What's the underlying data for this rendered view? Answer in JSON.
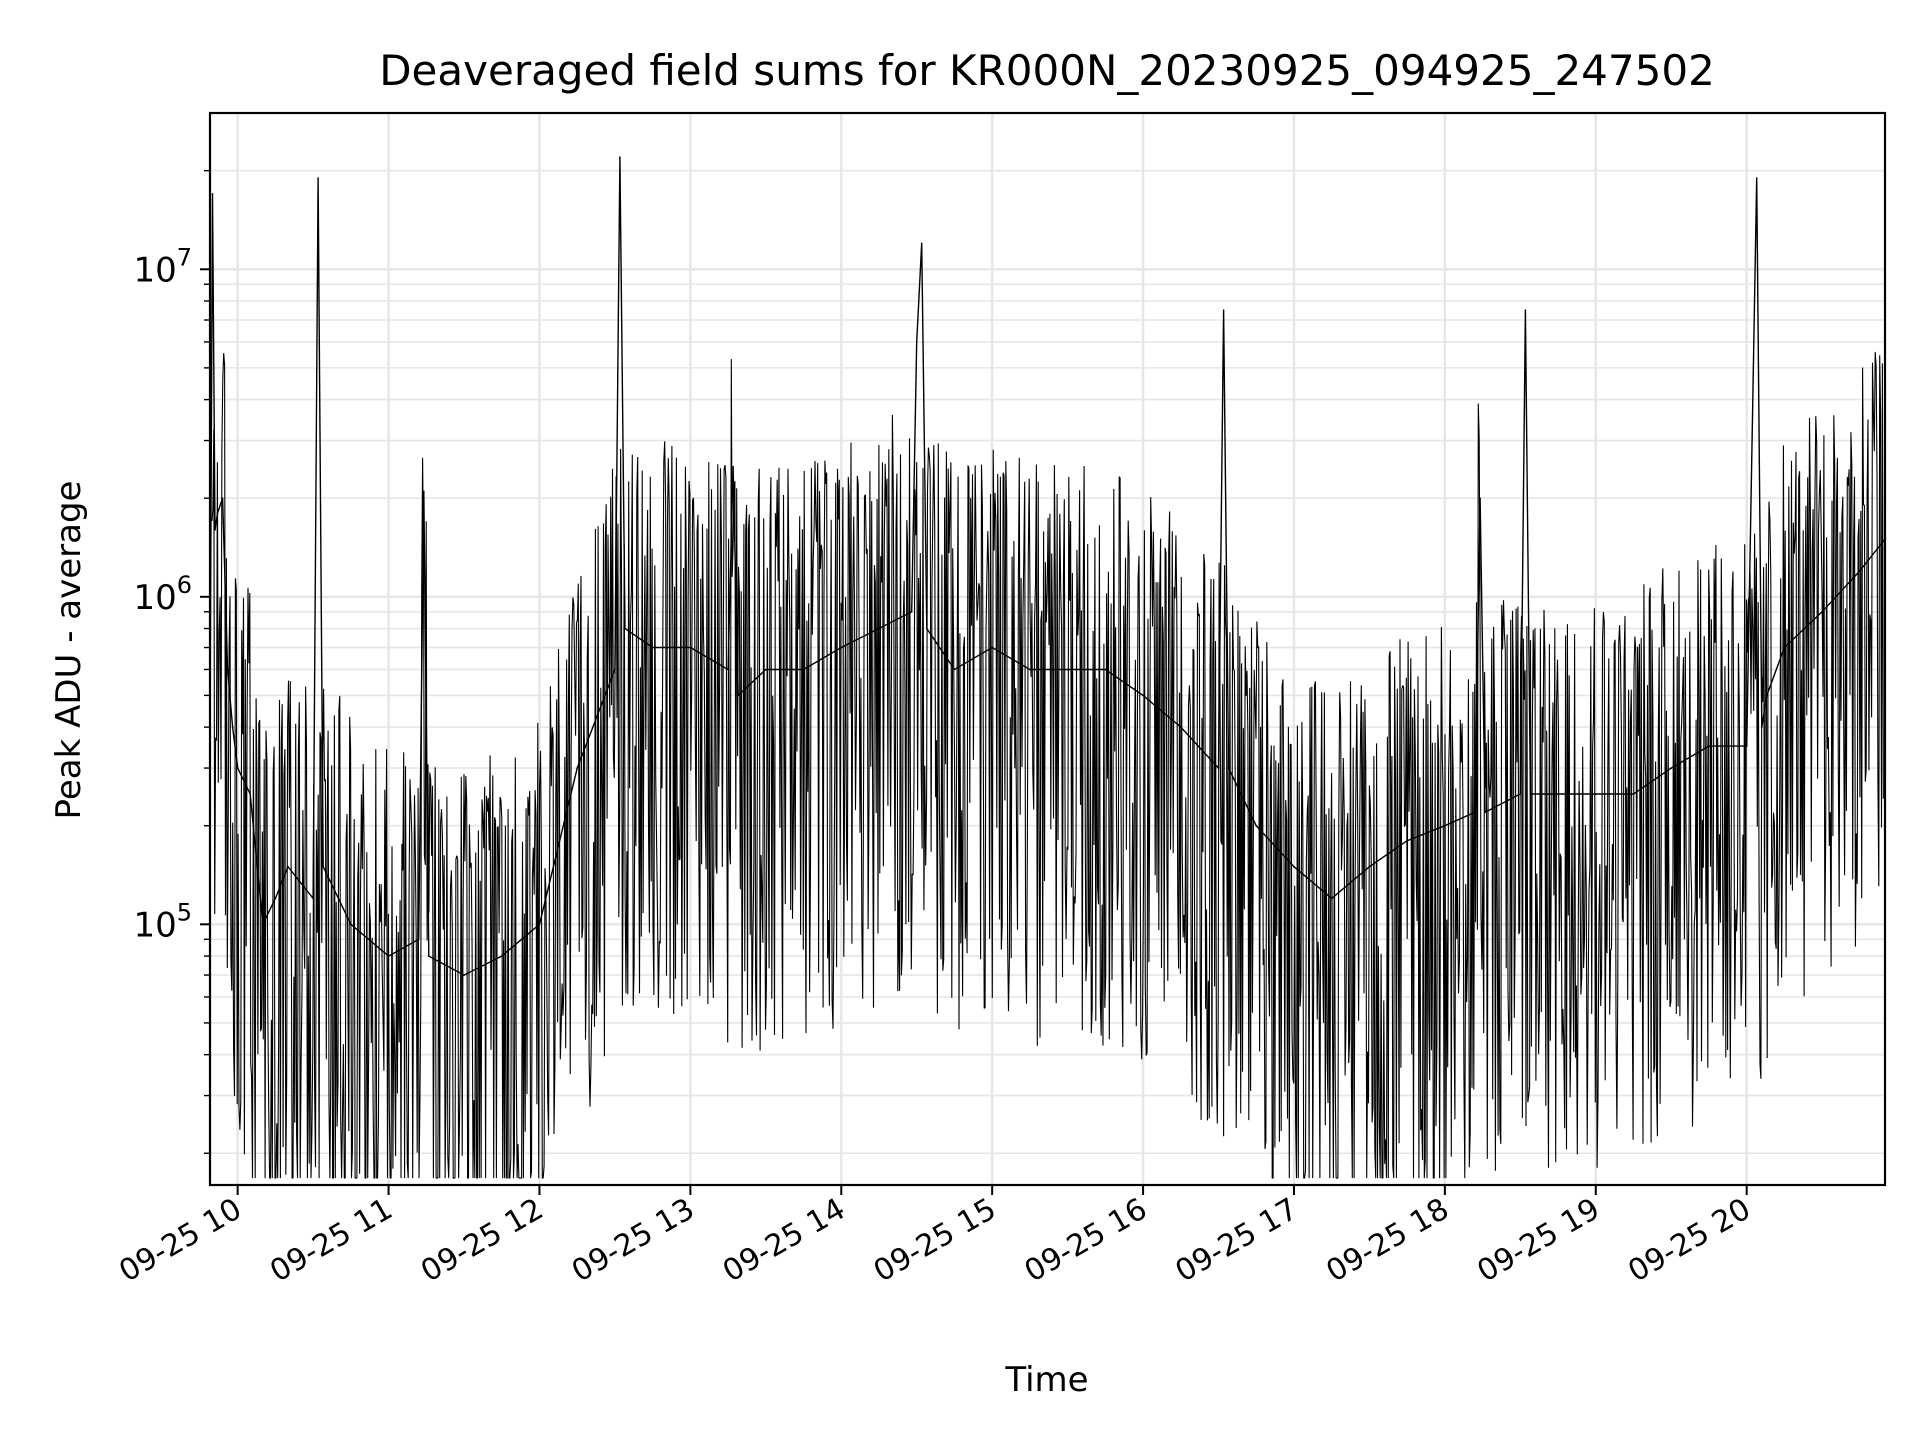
{
  "chart_data": {
    "type": "line",
    "title": "Deaveraged field sums for KR000N_20230925_094925_247502",
    "xlabel": "Time",
    "ylabel": "Peak ADU - average",
    "yscale": "log",
    "ylim": [
      16000,
      30000000
    ],
    "xlim": [
      "2023-09-25 09:49",
      "2023-09-25 20:55"
    ],
    "grid": true,
    "line_color": "#000000",
    "grid_color": "#e6e6e6",
    "x_ticks": [
      "09-25 10",
      "09-25 11",
      "09-25 12",
      "09-25 13",
      "09-25 14",
      "09-25 15",
      "09-25 16",
      "09-25 17",
      "09-25 18",
      "09-25 19",
      "09-25 20"
    ],
    "y_ticks": [
      {
        "base": "10",
        "exp": "5",
        "value": 100000
      },
      {
        "base": "10",
        "exp": "6",
        "value": 1000000
      },
      {
        "base": "10",
        "exp": "7",
        "value": 10000000
      }
    ],
    "series": [
      {
        "x": [
          "2023-09-25 09:49",
          "2023-09-25 09:50",
          "2023-09-25 09:51",
          "2023-09-25 09:52",
          "2023-09-25 09:54",
          "2023-09-25 09:56",
          "2023-09-25 09:58",
          "2023-09-25 10:00",
          "2023-09-25 10:05",
          "2023-09-25 10:10",
          "2023-09-25 10:15",
          "2023-09-25 10:20",
          "2023-09-25 10:30",
          "2023-09-25 10:32",
          "2023-09-25 10:34",
          "2023-09-25 10:45",
          "2023-09-25 11:00",
          "2023-09-25 11:12",
          "2023-09-25 11:14",
          "2023-09-25 11:16",
          "2023-09-25 11:30",
          "2023-09-25 11:45",
          "2023-09-25 12:00",
          "2023-09-25 12:15",
          "2023-09-25 12:30",
          "2023-09-25 12:32",
          "2023-09-25 12:34",
          "2023-09-25 12:45",
          "2023-09-25 13:00",
          "2023-09-25 13:15",
          "2023-09-25 13:17",
          "2023-09-25 13:19",
          "2023-09-25 13:30",
          "2023-09-25 13:45",
          "2023-09-25 14:00",
          "2023-09-25 14:15",
          "2023-09-25 14:28",
          "2023-09-25 14:30",
          "2023-09-25 14:32",
          "2023-09-25 14:34",
          "2023-09-25 14:45",
          "2023-09-25 15:00",
          "2023-09-25 15:15",
          "2023-09-25 15:30",
          "2023-09-25 15:45",
          "2023-09-25 16:00",
          "2023-09-25 16:15",
          "2023-09-25 16:30",
          "2023-09-25 16:32",
          "2023-09-25 16:34",
          "2023-09-25 16:45",
          "2023-09-25 17:00",
          "2023-09-25 17:15",
          "2023-09-25 17:30",
          "2023-09-25 17:45",
          "2023-09-25 18:00",
          "2023-09-25 18:12",
          "2023-09-25 18:14",
          "2023-09-25 18:16",
          "2023-09-25 18:30",
          "2023-09-25 18:32",
          "2023-09-25 18:34",
          "2023-09-25 18:45",
          "2023-09-25 19:00",
          "2023-09-25 19:15",
          "2023-09-25 19:30",
          "2023-09-25 19:45",
          "2023-09-25 20:00",
          "2023-09-25 20:04",
          "2023-09-25 20:06",
          "2023-09-25 20:08",
          "2023-09-25 20:15",
          "2023-09-25 20:30",
          "2023-09-25 20:45",
          "2023-09-25 20:55"
        ],
        "y": [
          400000,
          17000000,
          1600000,
          1800000,
          2000000,
          600000,
          400000,
          300000,
          250000,
          100000,
          120000,
          150000,
          120000,
          19000000,
          150000,
          100000,
          80000,
          90000,
          2100000,
          80000,
          70000,
          80000,
          100000,
          300000,
          600000,
          22000000,
          800000,
          700000,
          700000,
          600000,
          2500000,
          500000,
          600000,
          600000,
          700000,
          800000,
          900000,
          6000000,
          12000000,
          800000,
          600000,
          700000,
          600000,
          600000,
          600000,
          500000,
          400000,
          300000,
          7500000,
          300000,
          200000,
          150000,
          120000,
          150000,
          180000,
          200000,
          220000,
          2000000,
          220000,
          250000,
          7500000,
          250000,
          250000,
          250000,
          250000,
          300000,
          350000,
          350000,
          19000000,
          400000,
          500000,
          700000,
          900000,
          1200000,
          1500000
        ]
      }
    ]
  }
}
